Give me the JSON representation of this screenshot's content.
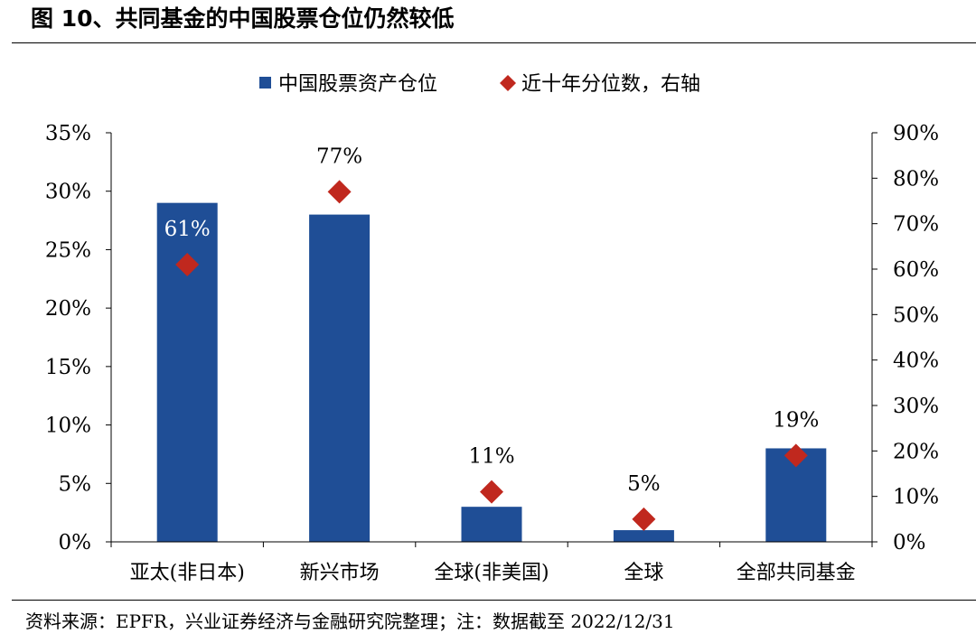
{
  "figure": {
    "title": "图 10、共同基金的中国股票仓位仍然较低",
    "source": "资料来源：EPFR，兴业证券经济与金融研究院整理；注：数据截至 2022/12/31"
  },
  "colors": {
    "bar": "#1F4E96",
    "marker": "#C0281E",
    "axis": "#000000"
  },
  "chart_data": {
    "type": "bar",
    "title": "",
    "legend_position": "top-center",
    "grid": false,
    "categories": [
      "亚太(非日本)",
      "新兴市场",
      "全球(非美国)",
      "全球",
      "全部共同基金"
    ],
    "series": [
      {
        "name": "中国股票资产仓位",
        "type": "bar",
        "axis": "left",
        "values": [
          29,
          28,
          3,
          1,
          8
        ]
      },
      {
        "name": "近十年分位数，右轴",
        "type": "scatter",
        "marker": "diamond",
        "axis": "right",
        "values": [
          61,
          77,
          11,
          5,
          19
        ],
        "labels": [
          "61%",
          "77%",
          "11%",
          "5%",
          "19%"
        ]
      }
    ],
    "y_left": {
      "ylim": [
        0,
        35
      ],
      "ticks": [
        "0%",
        "5%",
        "10%",
        "15%",
        "20%",
        "25%",
        "30%",
        "35%"
      ]
    },
    "y_right": {
      "ylim": [
        0,
        90
      ],
      "ticks": [
        "0%",
        "10%",
        "20%",
        "30%",
        "40%",
        "50%",
        "60%",
        "70%",
        "80%",
        "90%"
      ]
    },
    "xlabel": "",
    "ylabel": ""
  }
}
